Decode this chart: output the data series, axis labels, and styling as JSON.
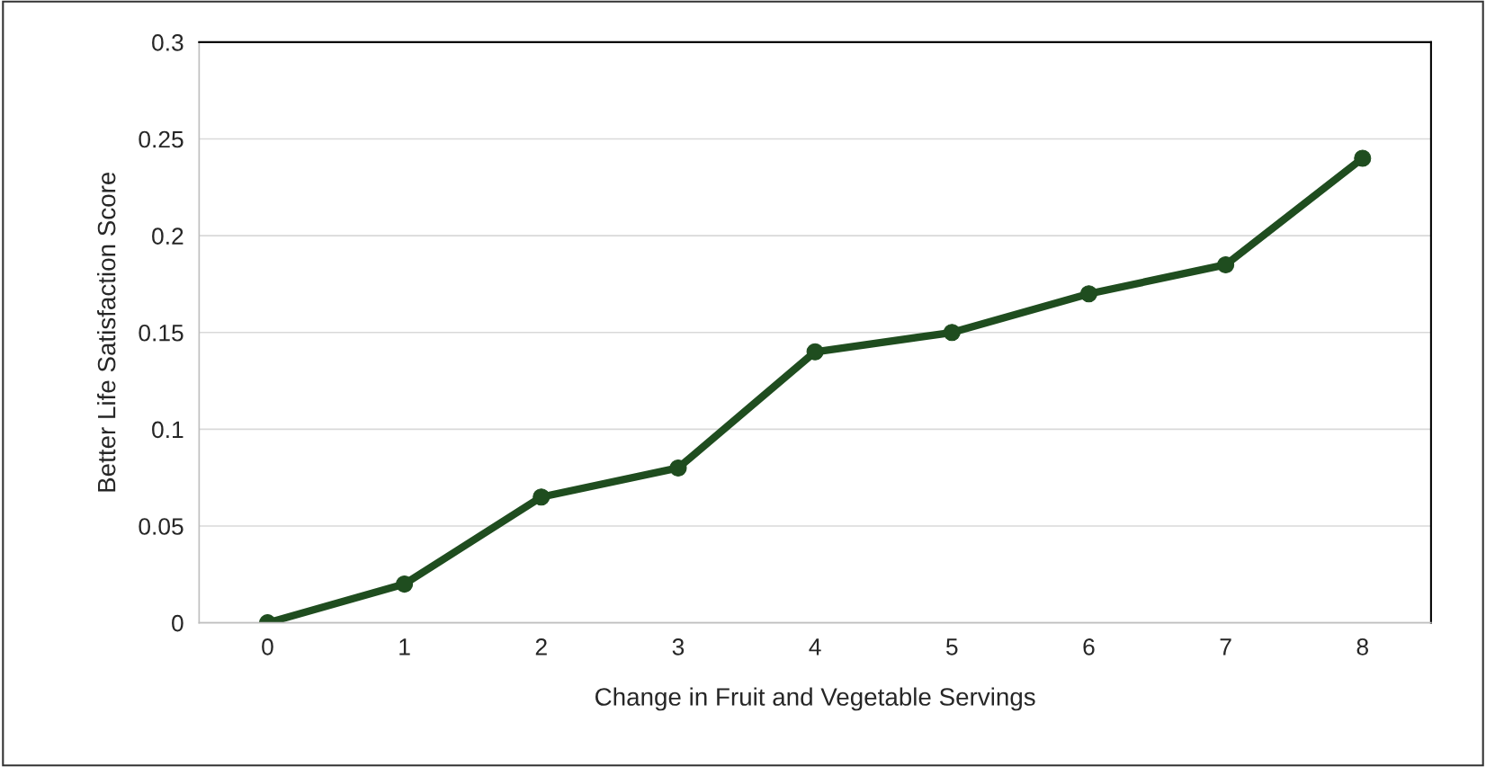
{
  "chart_data": {
    "type": "line",
    "xlabel": "Change in Fruit and Vegetable Servings",
    "ylabel": "Better Life Satisfaction Score",
    "categories": [
      "0",
      "1",
      "2",
      "3",
      "4",
      "5",
      "6",
      "7",
      "8"
    ],
    "series": [
      {
        "color": "#1f4d1f",
        "values": [
          0,
          0.02,
          0.065,
          0.08,
          0.14,
          0.15,
          0.17,
          0.185,
          0.24
        ]
      }
    ],
    "ylim": [
      0,
      0.3
    ],
    "yticks": [
      0,
      0.05,
      0.1,
      0.15,
      0.2,
      0.25,
      0.3
    ],
    "grid": "y",
    "marker": "circle",
    "line_style": "solid"
  }
}
